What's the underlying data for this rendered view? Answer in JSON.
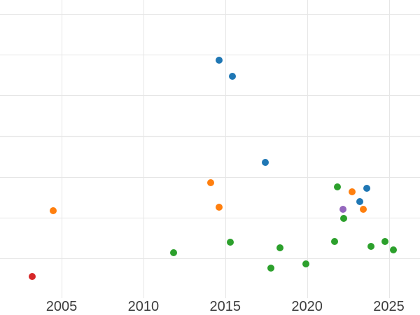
{
  "figure": {
    "background": "#ffffff",
    "grid_color": "#e6e6e6",
    "tick_label_color": "#3d3d3d"
  },
  "chart_data": {
    "type": "scatter",
    "title": "",
    "subtitle": "",
    "xlabel": "",
    "ylabel": "",
    "x_ticks": [
      2005,
      2010,
      2015,
      2020,
      2025
    ],
    "x_visible_range": [
      2001.2,
      2026.9
    ],
    "y_axis_note": "y-axis tick labels are not visible (cropped off left edge); y values are given in gridline units, 1 unit per horizontal gridline spacing, 0 = bottom edge of plot",
    "y_gridline_units": [
      1,
      2,
      3,
      4,
      5,
      6,
      7
    ],
    "y_major_gridline_unit": 4,
    "grid": true,
    "legend": false,
    "marker_size_px": 10,
    "series": [
      {
        "name": "blue",
        "color": "#1f77b4",
        "points": [
          [
            2014.61,
            5.86
          ],
          [
            2015.42,
            5.46
          ],
          [
            2017.45,
            3.35
          ],
          [
            2023.21,
            2.4
          ],
          [
            2023.64,
            2.72
          ]
        ]
      },
      {
        "name": "orange",
        "color": "#ff7f0e",
        "points": [
          [
            2004.49,
            2.18
          ],
          [
            2014.11,
            2.86
          ],
          [
            2014.64,
            2.26
          ],
          [
            2022.77,
            2.63
          ],
          [
            2023.45,
            2.2
          ]
        ]
      },
      {
        "name": "green",
        "color": "#2ca02c",
        "points": [
          [
            2011.86,
            1.14
          ],
          [
            2015.32,
            1.4
          ],
          [
            2017.78,
            0.77
          ],
          [
            2018.36,
            1.27
          ],
          [
            2019.92,
            0.87
          ],
          [
            2021.7,
            1.42
          ],
          [
            2021.87,
            2.75
          ],
          [
            2022.24,
            1.98
          ],
          [
            2023.92,
            1.3
          ],
          [
            2024.75,
            1.42
          ],
          [
            2025.27,
            1.21
          ]
        ]
      },
      {
        "name": "red",
        "color": "#d62728",
        "points": [
          [
            2003.22,
            0.56
          ]
        ]
      },
      {
        "name": "purple",
        "color": "#9467bd",
        "points": [
          [
            2022.2,
            2.21
          ]
        ]
      }
    ]
  }
}
